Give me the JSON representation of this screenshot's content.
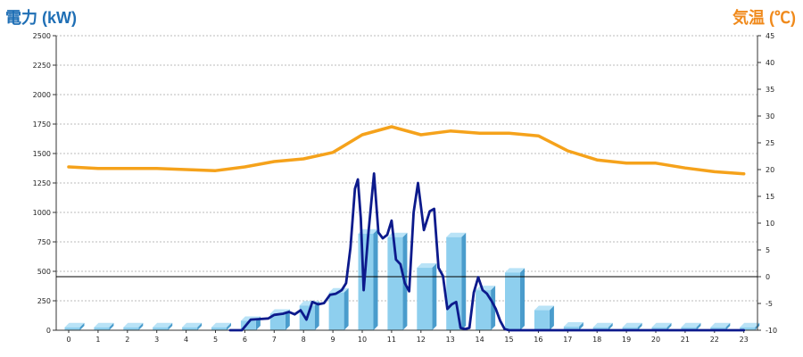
{
  "chart_data": {
    "type": "bar+line",
    "y1_title": "電力 (kW)",
    "y2_title": "気温 (℃)",
    "y1lim": [
      0,
      2500
    ],
    "y1_ticks": [
      "0",
      "250",
      "500",
      "750",
      "1000",
      "1250",
      "1500",
      "1750",
      "2000",
      "2250",
      "2500"
    ],
    "y2lim": [
      -10,
      45
    ],
    "y2_ticks": [
      "-10",
      "-5",
      "0",
      "5",
      "10",
      "15",
      "20",
      "25",
      "30",
      "35",
      "40",
      "45"
    ],
    "x_ticks": [
      "0",
      "1",
      "2",
      "3",
      "4",
      "5",
      "6",
      "7",
      "8",
      "9",
      "10",
      "11",
      "12",
      "13",
      "14",
      "15",
      "16",
      "17",
      "18",
      "19",
      "20",
      "21",
      "22",
      "23"
    ],
    "grid": true,
    "colors": {
      "bar": "#8ecfee",
      "bar_side": "#4a9ccc",
      "bar_top": "#b9e3f7",
      "power_line": "#0c1a8c",
      "temp_line": "#f5a21b",
      "zero_line": "#000000",
      "grid": "#bbbbbb"
    },
    "bars": {
      "name": "hourly power",
      "x": [
        0,
        1,
        2,
        3,
        4,
        5,
        6,
        7,
        8,
        9,
        10,
        11,
        12,
        13,
        14,
        15,
        16,
        17,
        18,
        19,
        20,
        21,
        22,
        23
      ],
      "values": [
        25,
        25,
        25,
        25,
        25,
        25,
        80,
        140,
        210,
        320,
        820,
        790,
        530,
        790,
        340,
        490,
        170,
        30,
        25,
        25,
        25,
        25,
        25,
        25
      ]
    },
    "power_line": {
      "x": [
        5.5,
        5.9,
        6.2,
        6.5,
        6.8,
        7.0,
        7.3,
        7.5,
        7.7,
        7.9,
        8.1,
        8.3,
        8.5,
        8.7,
        8.9,
        9.1,
        9.3,
        9.45,
        9.6,
        9.75,
        9.85,
        9.95,
        10.05,
        10.2,
        10.4,
        10.55,
        10.7,
        10.85,
        11.0,
        11.15,
        11.3,
        11.45,
        11.6,
        11.75,
        11.9,
        12.1,
        12.3,
        12.45,
        12.6,
        12.75,
        12.9,
        13.05,
        13.2,
        13.35,
        13.5,
        13.65,
        13.8,
        13.95,
        14.1,
        14.25,
        14.4,
        14.55,
        14.7,
        14.85,
        15.0,
        15.2,
        15.4,
        15.6,
        15.8,
        16.0,
        16.3,
        16.6,
        16.9,
        17.2,
        18.0,
        23.0
      ],
      "values": [
        0,
        0,
        90,
        95,
        100,
        130,
        140,
        155,
        135,
        170,
        90,
        240,
        220,
        230,
        300,
        310,
        340,
        400,
        700,
        1200,
        1280,
        950,
        340,
        800,
        1330,
        830,
        780,
        810,
        930,
        600,
        560,
        400,
        330,
        1000,
        1250,
        850,
        1010,
        1030,
        530,
        460,
        180,
        220,
        240,
        20,
        10,
        20,
        320,
        450,
        340,
        310,
        250,
        180,
        80,
        10,
        0,
        0,
        0,
        0,
        0,
        0,
        0,
        0,
        0,
        0,
        0,
        0
      ]
    },
    "temp_line": {
      "x": [
        0,
        1,
        2,
        3,
        4,
        5,
        6,
        7,
        8,
        9,
        10,
        11,
        12,
        13,
        14,
        15,
        16,
        17,
        18,
        19,
        20,
        21,
        22,
        23
      ],
      "values": [
        20.5,
        20.2,
        20.2,
        20.2,
        20.0,
        19.8,
        20.5,
        21.5,
        22.0,
        23.2,
        26.5,
        28.0,
        26.5,
        27.2,
        26.8,
        26.8,
        26.3,
        23.5,
        21.8,
        21.2,
        21.2,
        20.3,
        19.6,
        19.2
      ]
    }
  }
}
